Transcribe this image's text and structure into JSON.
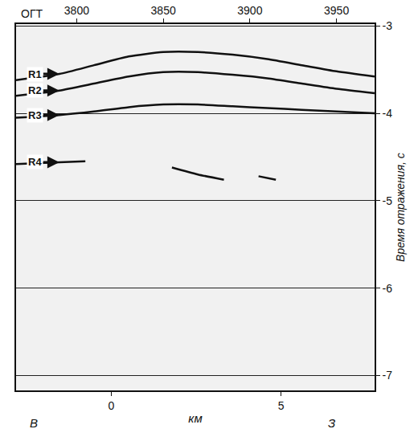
{
  "chart_data": {
    "type": "line",
    "x_label": "ОГТ",
    "x2_label": "км",
    "y_label": "Время отражения, с",
    "xlim": [
      3765,
      3972
    ],
    "xticks": [
      3800,
      3850,
      3900,
      3950
    ],
    "x2lim": [
      -2.8,
      7.75
    ],
    "x2ticks": [
      0,
      5
    ],
    "ylim": [
      -7.17,
      -2.98
    ],
    "yticks": [
      -3,
      -4,
      -5,
      -6,
      -7
    ],
    "grid": true,
    "color": "#111111",
    "annotations": [
      "В",
      "З"
    ],
    "series": [
      {
        "name": "R1",
        "x": [
          3765,
          3790,
          3810,
          3830,
          3850,
          3870,
          3890,
          3910,
          3930,
          3950,
          3972
        ],
        "values": [
          -3.62,
          -3.55,
          -3.45,
          -3.35,
          -3.3,
          -3.3,
          -3.33,
          -3.38,
          -3.45,
          -3.52,
          -3.58
        ]
      },
      {
        "name": "R2",
        "x": [
          3765,
          3790,
          3810,
          3830,
          3850,
          3870,
          3890,
          3910,
          3930,
          3950,
          3972
        ],
        "values": [
          -3.8,
          -3.74,
          -3.66,
          -3.58,
          -3.53,
          -3.53,
          -3.56,
          -3.6,
          -3.66,
          -3.72,
          -3.77
        ]
      },
      {
        "name": "R3",
        "x": [
          3765,
          3790,
          3810,
          3830,
          3850,
          3870,
          3890,
          3910,
          3930,
          3950,
          3972
        ],
        "values": [
          -4.05,
          -4.02,
          -3.98,
          -3.93,
          -3.9,
          -3.9,
          -3.92,
          -3.94,
          -3.96,
          -3.98,
          -4.0
        ]
      },
      {
        "name": "R4",
        "x": [
          3765,
          3790,
          3805,
          3840,
          3855,
          3870,
          3885,
          3895,
          3905,
          3915
        ],
        "values": [
          -4.58,
          -4.56,
          -4.55,
          null,
          -4.62,
          -4.7,
          -4.76,
          null,
          -4.72,
          -4.76
        ]
      }
    ]
  }
}
